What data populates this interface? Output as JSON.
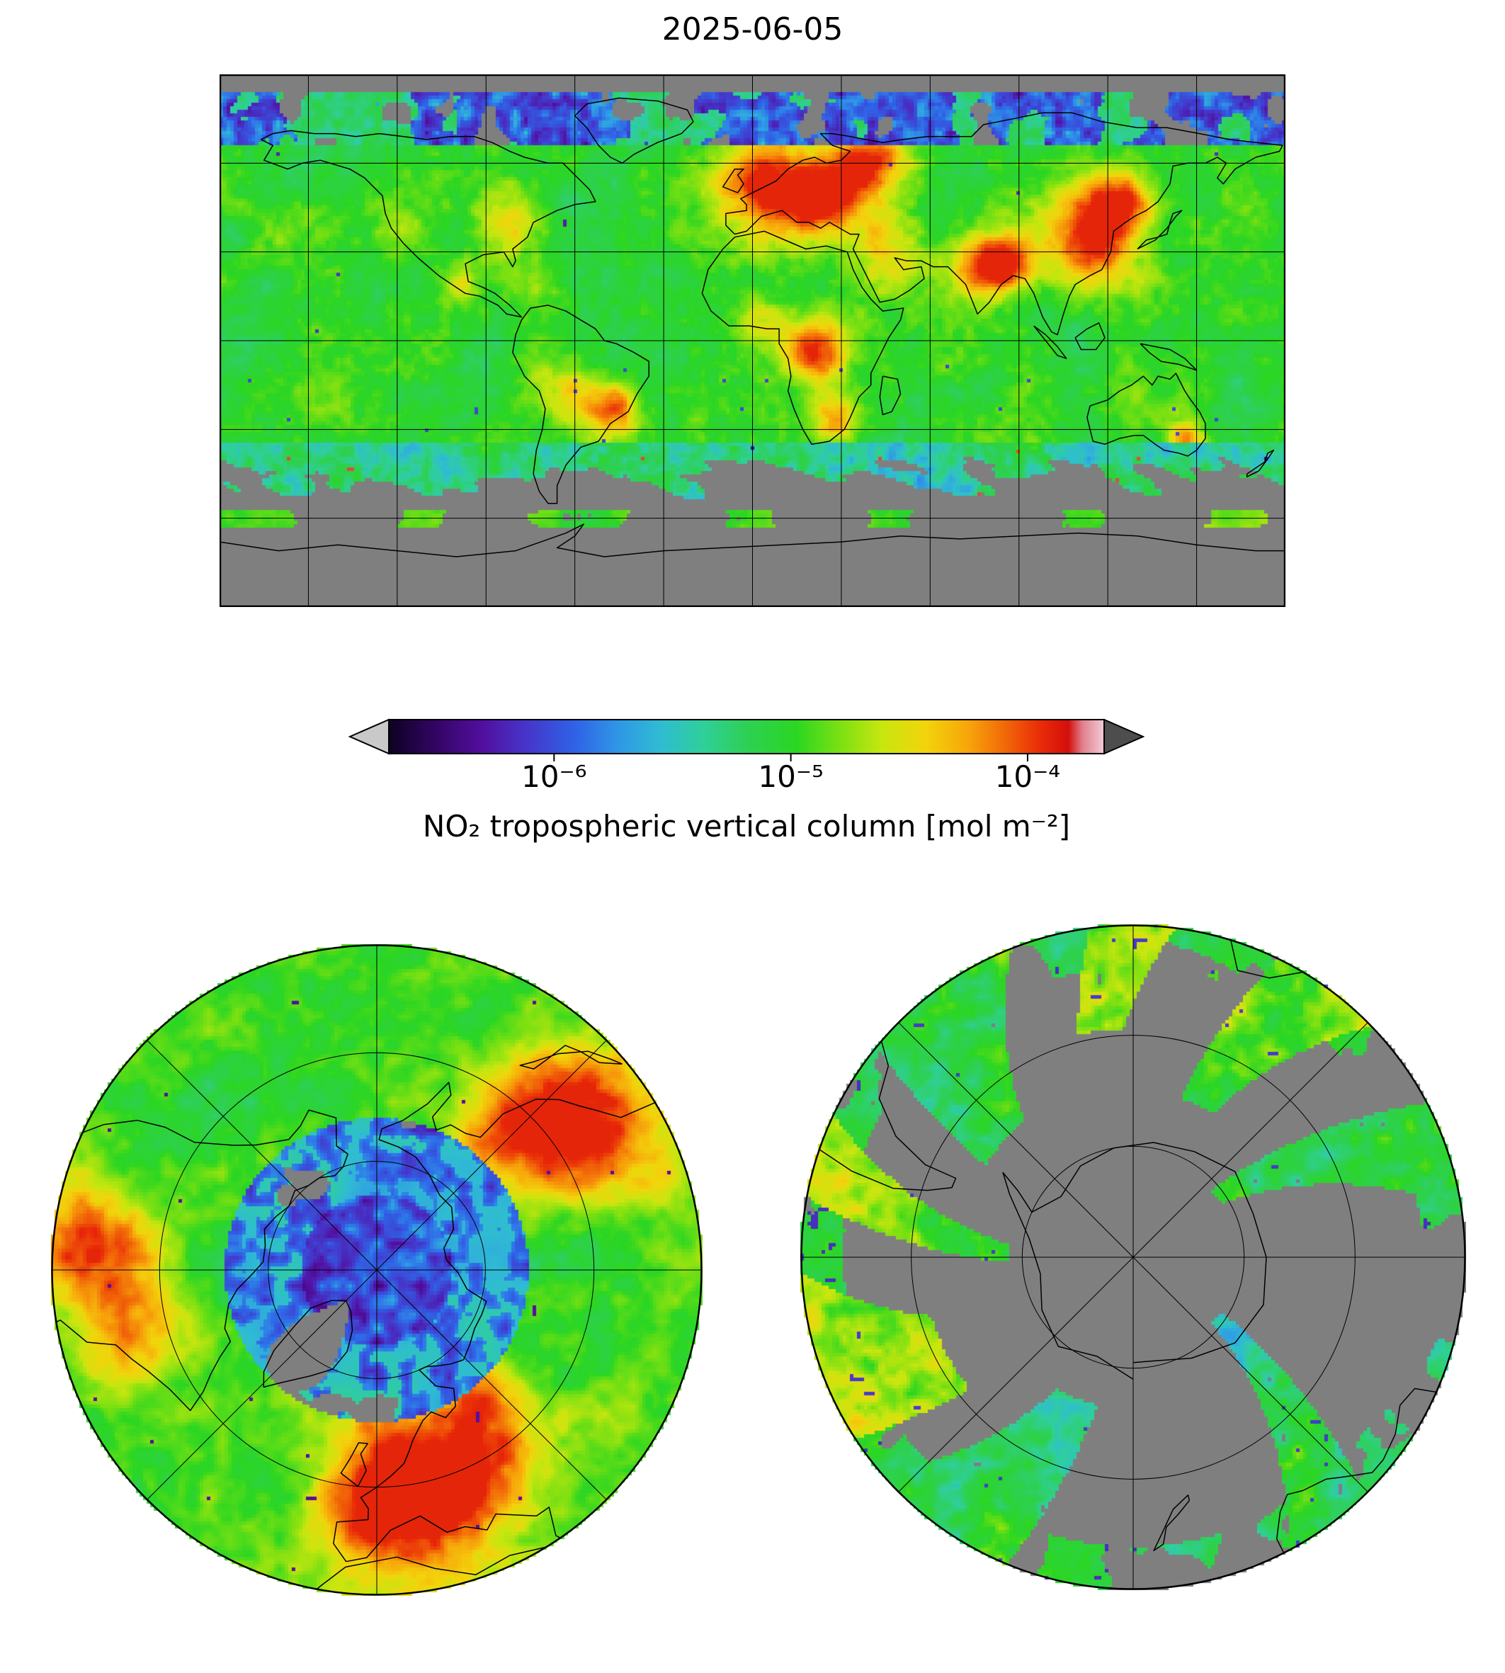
{
  "title": "2025-06-05",
  "colorbar": {
    "label": "NO₂ tropospheric vertical column [mol m⁻²]",
    "ticks": [
      {
        "label": "10⁻⁶",
        "pos": 0.231,
        "value": 1e-06
      },
      {
        "label": "10⁻⁵",
        "pos": 0.562,
        "value": 1e-05
      },
      {
        "label": "10⁻⁴",
        "pos": 0.893,
        "value": 0.0001
      }
    ],
    "under_color": "#c9c9c9",
    "over_color": "#4d4d4d",
    "stops": [
      [
        0.0,
        "#0d0221"
      ],
      [
        0.06,
        "#30045e"
      ],
      [
        0.13,
        "#520e9e"
      ],
      [
        0.19,
        "#4634c8"
      ],
      [
        0.26,
        "#2f62e6"
      ],
      [
        0.32,
        "#2f96e6"
      ],
      [
        0.38,
        "#2fbcd2"
      ],
      [
        0.44,
        "#2fcf9a"
      ],
      [
        0.5,
        "#2ed054"
      ],
      [
        0.57,
        "#2bd622"
      ],
      [
        0.63,
        "#7ae012"
      ],
      [
        0.69,
        "#c8e60f"
      ],
      [
        0.75,
        "#f2d40c"
      ],
      [
        0.81,
        "#f7a50a"
      ],
      [
        0.86,
        "#f26a08"
      ],
      [
        0.91,
        "#e92c08"
      ],
      [
        0.95,
        "#d40f0c"
      ],
      [
        0.97,
        "#e2808e"
      ],
      [
        1.0,
        "#f2ccd6"
      ]
    ]
  },
  "chart_data": {
    "type": "heatmap",
    "title": "2025-06-05",
    "variable": "NO₂ tropospheric vertical column",
    "units": "mol m⁻²",
    "colorbar_scale": "log",
    "colorbar_ticks": [
      1e-06,
      1e-05,
      0.0001
    ],
    "colorbar_range_approx": [
      2e-07,
      0.0002
    ],
    "no_data_color": "#7f7f7f",
    "panels": [
      {
        "name": "global-map",
        "projection": "equirectangular",
        "lon_range": [
          -180,
          180
        ],
        "lat_range": [
          -90,
          90
        ],
        "gridline_spacing_deg": 30
      },
      {
        "name": "north-polar-map",
        "projection": "north-polar-stereographic",
        "lat_range": [
          30,
          90
        ],
        "lat_circles": [
          50,
          70
        ],
        "meridian_spacing_deg": 45
      },
      {
        "name": "south-polar-map",
        "projection": "south-polar-stereographic",
        "lat_range": [
          -90,
          -30
        ],
        "lat_circles": [
          -50,
          -70
        ],
        "meridian_spacing_deg": 45
      }
    ],
    "high_value_regions": [
      "Western and Central Europe",
      "Eastern China",
      "Northern India",
      "Middle East",
      "Central Africa (Congo)",
      "Highveld South Africa",
      "Southeastern Brazil (Sao Paulo)",
      "Eastern United States",
      "Southeastern Australia",
      "Western Russia"
    ],
    "low_value_regions": [
      "High Arctic (purple/blue speckle)",
      "Southern mid-latitude oceans"
    ],
    "no_data_regions": [
      "Antarctica interior",
      "Southern Ocean swath gaps",
      "Arctic sea-ice areas",
      "Greenland"
    ]
  }
}
